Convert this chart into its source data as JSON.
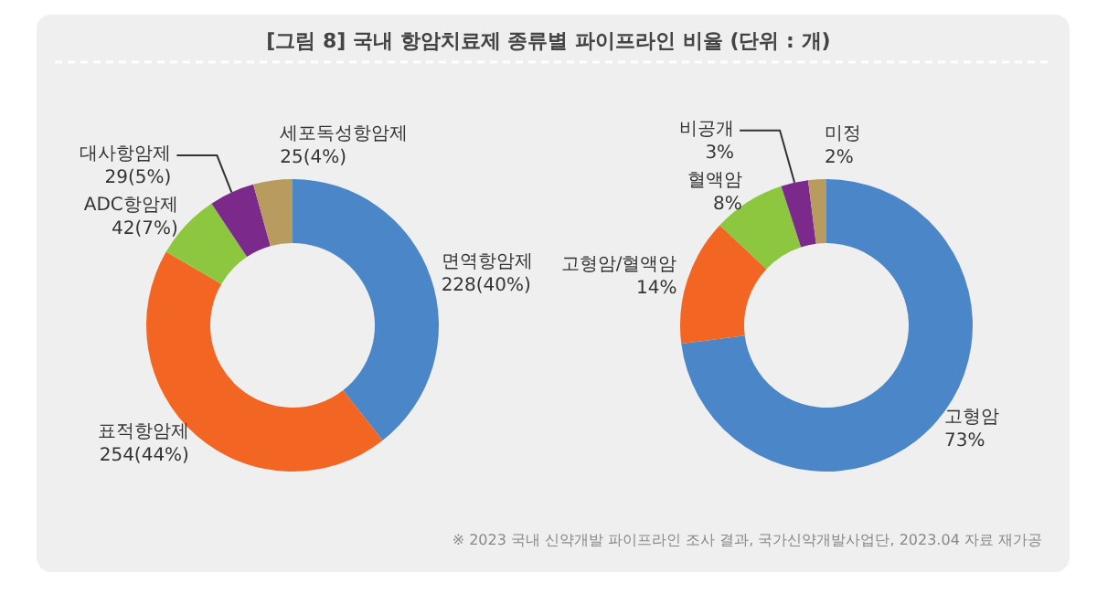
{
  "chart_data": [
    {
      "type": "donut",
      "title": "[그림 8] 국내 항암치료제 종류별 파이프라인 비율 (단위 : 개)",
      "categories": [
        "면역항암제",
        "표적항암제",
        "ADC항암제",
        "대사항암제",
        "세포독성항암제"
      ],
      "values": [
        228,
        254,
        42,
        29,
        25
      ],
      "value_labels": [
        "228(40%)",
        "254(44%)",
        "42(7%)",
        "29(5%)",
        "25(4%)"
      ],
      "colors": [
        "#4a86c8",
        "#f26522",
        "#8dc63f",
        "#7b2a8c",
        "#b89b5e"
      ]
    },
    {
      "type": "donut",
      "categories": [
        "고형암",
        "고형암/혈액암",
        "혈액암",
        "비공개",
        "미정"
      ],
      "values": [
        73,
        14,
        8,
        3,
        2
      ],
      "value_labels": [
        "73%",
        "14%",
        "8%",
        "3%",
        "2%"
      ],
      "colors": [
        "#4a86c8",
        "#f26522",
        "#8dc63f",
        "#7b2a8c",
        "#b89b5e"
      ],
      "annotations": [
        "※ 2023 국내 신약개발 파이프라인 조사 결과, 국가신약개발사업단, 2023.04 자료 재가공"
      ]
    }
  ]
}
